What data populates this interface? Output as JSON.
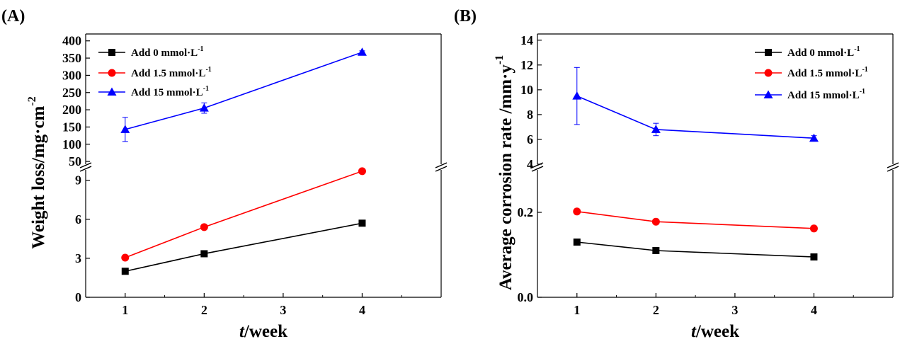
{
  "chart_data": [
    {
      "panel_label": "(A)",
      "type": "line",
      "x_title": {
        "italic": "t",
        "rest": "/week"
      },
      "y_title": {
        "main": "Weight loss/mg·cm",
        "sup": "-2"
      },
      "x_ticks": [
        "1",
        "2",
        "3",
        "4"
      ],
      "xlim": [
        0.5,
        5
      ],
      "segments": {
        "lower": {
          "ylim": [
            0,
            9.8
          ],
          "ticks": [
            "0",
            "3",
            "6",
            "9"
          ]
        },
        "upper": {
          "ylim": [
            42,
            420
          ],
          "ticks": [
            "50",
            "100",
            "150",
            "200",
            "250",
            "300",
            "350",
            "400"
          ]
        }
      },
      "series": [
        {
          "name": "Add 0 mmol·L",
          "sup": "-1",
          "color": "#000000",
          "marker": "square",
          "segment": "lower",
          "points": [
            {
              "x": 1,
              "y": 2.0
            },
            {
              "x": 2,
              "y": 3.35
            },
            {
              "x": 4,
              "y": 5.7
            }
          ]
        },
        {
          "name": "Add 1.5 mmol·L",
          "sup": "-1",
          "color": "#ff0000",
          "marker": "circle",
          "segment": "lower",
          "points": [
            {
              "x": 1,
              "y": 3.05
            },
            {
              "x": 2,
              "y": 5.4
            },
            {
              "x": 4,
              "y": 9.7
            }
          ]
        },
        {
          "name": "Add 15 mmol·L",
          "sup": "-1",
          "color": "#0000ff",
          "marker": "triangle",
          "segment": "upper",
          "points": [
            {
              "x": 1,
              "y": 143,
              "err": 35
            },
            {
              "x": 2,
              "y": 205,
              "err": 15
            },
            {
              "x": 4,
              "y": 367,
              "err": 4
            }
          ]
        }
      ]
    },
    {
      "panel_label": "(B)",
      "type": "line",
      "x_title": {
        "italic": "t",
        "rest": "/week"
      },
      "y_title": {
        "main": "Average corrosion rate /mm·y",
        "sup": "-1"
      },
      "x_ticks": [
        "1",
        "2",
        "3",
        "4"
      ],
      "xlim": [
        0.5,
        5
      ],
      "segments": {
        "lower": {
          "ylim": [
            0,
            0.3
          ],
          "ticks": [
            "0.0",
            "0.2"
          ]
        },
        "upper": {
          "ylim": [
            4,
            14.5
          ],
          "ticks": [
            "4",
            "6",
            "8",
            "10",
            "12",
            "14"
          ]
        }
      },
      "series": [
        {
          "name": "Add 0 mmol·L",
          "sup": "-1",
          "color": "#000000",
          "marker": "square",
          "segment": "lower",
          "points": [
            {
              "x": 1,
              "y": 0.13
            },
            {
              "x": 2,
              "y": 0.11
            },
            {
              "x": 4,
              "y": 0.095
            }
          ]
        },
        {
          "name": "Add 1.5 mmol·L",
          "sup": "-1",
          "color": "#ff0000",
          "marker": "circle",
          "segment": "lower",
          "points": [
            {
              "x": 1,
              "y": 0.202
            },
            {
              "x": 2,
              "y": 0.178
            },
            {
              "x": 4,
              "y": 0.162
            }
          ]
        },
        {
          "name": "Add 15 mmol·L",
          "sup": "-1",
          "color": "#0000ff",
          "marker": "triangle",
          "segment": "upper",
          "points": [
            {
              "x": 1,
              "y": 9.5,
              "err": 2.3
            },
            {
              "x": 2,
              "y": 6.8,
              "err": 0.5
            },
            {
              "x": 4,
              "y": 6.1,
              "err": 0.2
            }
          ]
        }
      ]
    }
  ]
}
